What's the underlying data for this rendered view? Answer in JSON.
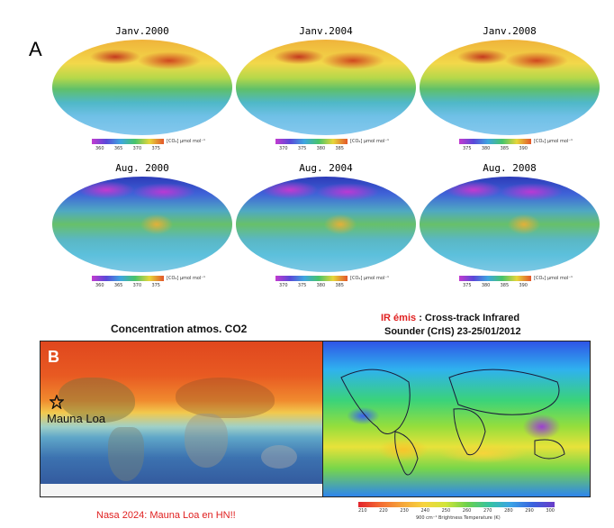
{
  "panel_a": {
    "letter": "A",
    "maps": [
      {
        "title": "Janv.2000",
        "season": "winter",
        "ticks": [
          "360",
          "365",
          "370",
          "375"
        ]
      },
      {
        "title": "Janv.2004",
        "season": "winter",
        "ticks": [
          "370",
          "375",
          "380",
          "385"
        ]
      },
      {
        "title": "Janv.2008",
        "season": "winter",
        "ticks": [
          "375",
          "380",
          "385",
          "390"
        ]
      },
      {
        "title": "Aug. 2000",
        "season": "summer",
        "ticks": [
          "360",
          "365",
          "370",
          "375"
        ]
      },
      {
        "title": "Aug. 2004",
        "season": "summer",
        "ticks": [
          "370",
          "375",
          "380",
          "385"
        ]
      },
      {
        "title": "Aug. 2008",
        "season": "summer",
        "ticks": [
          "375",
          "380",
          "385",
          "390"
        ]
      }
    ],
    "unit_label": "[CO₂] µmol mol⁻¹"
  },
  "panel_b": {
    "letter": "B",
    "left_title": "Concentration atmos. CO2",
    "marker_label": "Mauna Loa",
    "caption": "Nasa  2024: Mauna Loa en HN!!",
    "right_title_red": "IR émis",
    "right_title_rest": " : Cross-track Infrared",
    "right_title_line2": "Sounder (CrIS)   23-25/01/2012",
    "ir_ticks": [
      "210",
      "220",
      "230",
      "240",
      "250",
      "260",
      "270",
      "280",
      "290",
      "300"
    ],
    "ir_axis_label": "900 cm⁻¹ Brightness Temperature (K)"
  },
  "colors": {
    "accent_red": "#e02020",
    "co2_high": "#d23a1c",
    "co2_low": "#2a7dd8",
    "ir_warm": "#f6c12a"
  }
}
